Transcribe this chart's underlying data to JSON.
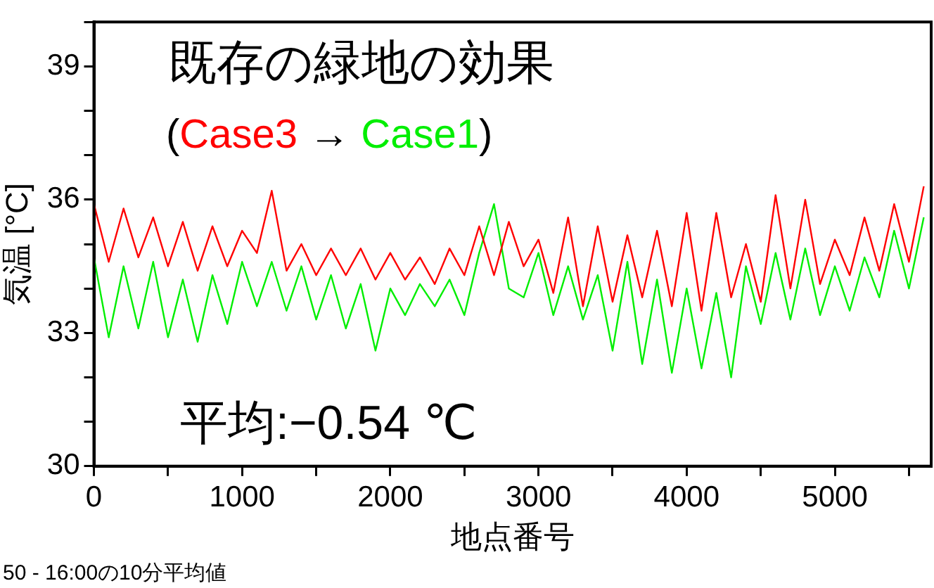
{
  "chart_data": {
    "type": "line",
    "title": "既存の緑地の効果",
    "subtitle": "(Case3 → Case1)",
    "xlabel": "地点番号",
    "ylabel": "気温 [°C]",
    "annotations": [
      "平均:−0.54 ℃",
      "50 - 16:00の10分平均値"
    ],
    "x": [
      0,
      100,
      200,
      300,
      400,
      500,
      600,
      700,
      800,
      900,
      1000,
      1100,
      1200,
      1300,
      1400,
      1500,
      1600,
      1700,
      1800,
      1900,
      2000,
      2100,
      2200,
      2300,
      2400,
      2500,
      2600,
      2700,
      2800,
      2900,
      3000,
      3100,
      3200,
      3300,
      3400,
      3500,
      3600,
      3700,
      3800,
      3900,
      4000,
      4100,
      4200,
      4300,
      4400,
      4500,
      4600,
      4700,
      4800,
      4900,
      5000,
      5100,
      5200,
      5300,
      5400,
      5500,
      5600
    ],
    "series": [
      {
        "color": "#ff0000",
        "values": [
          35.9,
          34.6,
          35.8,
          34.7,
          35.6,
          34.5,
          35.5,
          34.4,
          35.4,
          34.5,
          35.3,
          34.8,
          36.2,
          34.4,
          35.0,
          34.3,
          34.9,
          34.3,
          34.9,
          34.2,
          34.8,
          34.2,
          34.7,
          34.1,
          34.9,
          34.3,
          35.4,
          34.3,
          35.5,
          34.5,
          35.1,
          33.9,
          35.6,
          33.6,
          35.4,
          33.7,
          35.2,
          33.8,
          35.3,
          33.6,
          35.7,
          33.5,
          35.7,
          33.8,
          35.0,
          33.7,
          36.1,
          34.0,
          36.0,
          34.1,
          35.1,
          34.3,
          35.6,
          34.4,
          35.9,
          34.6,
          36.3
        ]
      },
      {
        "color": "#00ee00",
        "values": [
          34.7,
          32.9,
          34.5,
          33.1,
          34.6,
          32.9,
          34.2,
          32.8,
          34.3,
          33.2,
          34.6,
          33.6,
          34.6,
          33.5,
          34.5,
          33.3,
          34.3,
          33.1,
          34.1,
          32.6,
          34.0,
          33.4,
          34.1,
          33.6,
          34.2,
          33.4,
          34.8,
          35.9,
          34.0,
          33.8,
          34.8,
          33.4,
          34.5,
          33.3,
          34.3,
          32.6,
          34.6,
          32.3,
          34.2,
          32.1,
          34.0,
          32.2,
          33.9,
          32.0,
          34.5,
          33.2,
          34.8,
          33.3,
          34.9,
          33.4,
          34.5,
          33.5,
          34.7,
          33.8,
          35.3,
          34.0,
          35.6
        ]
      }
    ],
    "xlim": [
      0,
      5650
    ],
    "ylim": [
      30,
      40
    ],
    "xticks": [
      0,
      {
        "value": 500,
        "label": null
      },
      1000,
      {
        "value": 1500,
        "label": null
      },
      2000,
      {
        "value": 2500,
        "label": null
      },
      3000,
      {
        "value": 3500,
        "label": null
      },
      4000,
      {
        "value": 4500,
        "label": null
      },
      5000,
      {
        "value": 5500,
        "label": null
      }
    ],
    "yticks": [
      30,
      {
        "value": 31,
        "label": null
      },
      {
        "value": 32,
        "label": null
      },
      33,
      {
        "value": 34,
        "label": null
      },
      {
        "value": 35,
        "label": null
      },
      36,
      {
        "value": 37,
        "label": null
      },
      {
        "value": 38,
        "label": null
      },
      39,
      {
        "value": 40,
        "label": null
      }
    ],
    "grid": false,
    "legend": false,
    "marker": "none",
    "line_style": "solid"
  }
}
